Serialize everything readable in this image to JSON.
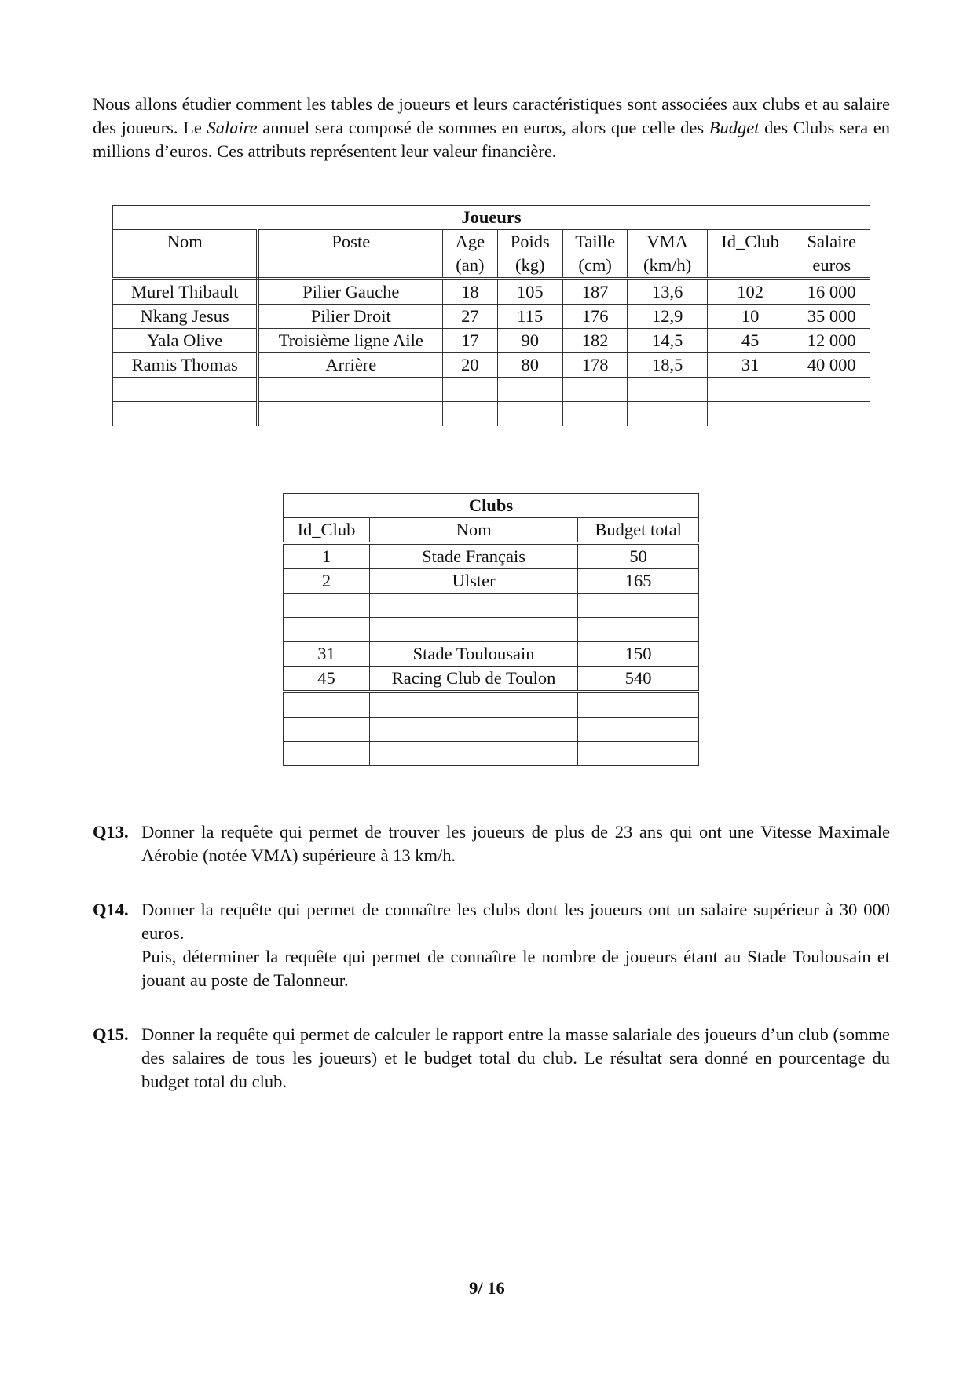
{
  "intro": {
    "p1": "Nous allons étudier comment les tables de joueurs et leurs caractéristiques sont associées aux clubs et au salaire des joueurs. Le ",
    "salaire_em": "Salaire",
    "p2": " annuel sera composé de sommes en euros, alors que celle des ",
    "budget_em": "Budget",
    "p3": " des Clubs sera en millions d’euros. Ces attributs représentent leur valeur financière."
  },
  "joueurs": {
    "title": "Joueurs",
    "headers": [
      {
        "l1": "Nom",
        "l2": ""
      },
      {
        "l1": "Poste",
        "l2": ""
      },
      {
        "l1": "Age",
        "l2": "(an)"
      },
      {
        "l1": "Poids",
        "l2": "(kg)"
      },
      {
        "l1": "Taille",
        "l2": "(cm)"
      },
      {
        "l1": "VMA",
        "l2": "(km/h)"
      },
      {
        "l1": "Id_Club",
        "l2": ""
      },
      {
        "l1": "Salaire",
        "l2": "euros"
      }
    ],
    "rows": [
      [
        "Murel Thibault",
        "Pilier Gauche",
        "18",
        "105",
        "187",
        "13,6",
        "102",
        "16 000"
      ],
      [
        "Nkang Jesus",
        "Pilier Droit",
        "27",
        "115",
        "176",
        "12,9",
        "10",
        "35 000"
      ],
      [
        "Yala Olive",
        "Troisième ligne Aile",
        "17",
        "90",
        "182",
        "14,5",
        "45",
        "12 000"
      ],
      [
        "Ramis Thomas",
        "Arrière",
        "20",
        "80",
        "178",
        "18,5",
        "31",
        "40 000"
      ],
      [
        "",
        "",
        "",
        "",
        "",
        "",
        "",
        ""
      ],
      [
        "",
        "",
        "",
        "",
        "",
        "",
        "",
        ""
      ]
    ]
  },
  "clubs": {
    "title": "Clubs",
    "headers": [
      "Id_Club",
      "Nom",
      "Budget total"
    ],
    "rows": [
      [
        "1",
        "Stade Français",
        "50"
      ],
      [
        "2",
        "Ulster",
        "165"
      ],
      [
        "",
        "",
        ""
      ],
      [
        "",
        "",
        ""
      ],
      [
        "31",
        "Stade Toulousain",
        "150"
      ],
      [
        "45",
        "Racing Club de Toulon",
        "540"
      ],
      [
        "",
        "",
        ""
      ],
      [
        "",
        "",
        ""
      ],
      [
        "",
        "",
        ""
      ]
    ]
  },
  "questions": [
    {
      "label": "Q13.",
      "text": "Donner la requête qui permet de trouver les joueurs de plus de 23 ans qui ont une Vitesse Maximale Aérobie (notée VMA) supérieure à 13 km/h.",
      "text2": ""
    },
    {
      "label": "Q14.",
      "text": "Donner la requête qui permet de connaître les clubs dont les joueurs ont un salaire supérieur à 30 000 euros.",
      "text2": "Puis, déterminer la requête qui permet de connaître le nombre de joueurs étant au Stade Toulousain et jouant au poste de Talonneur."
    },
    {
      "label": "Q15.",
      "text": "Donner la requête qui permet de calculer le rapport entre la masse salariale des joueurs d’un club (somme des salaires de tous les joueurs) et le budget total du club. Le résultat sera donné en pourcentage du budget total du club.",
      "text2": ""
    }
  ],
  "page_number": "9/ 16"
}
